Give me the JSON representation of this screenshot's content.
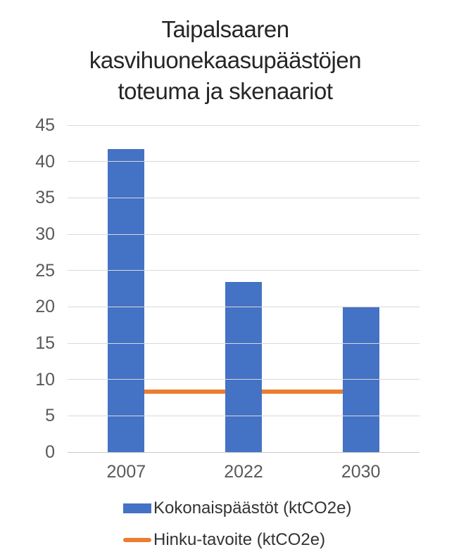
{
  "chart_data": {
    "type": "bar",
    "title": "Taipalsaaren kasvihuonekaasupäästöjen toteuma ja skenaariot",
    "title_lines": [
      "Taipalsaaren",
      "kasvihuonekaasupäästöjen",
      "toteuma ja skenaariot"
    ],
    "categories": [
      "2007",
      "2022",
      "2030"
    ],
    "series": [
      {
        "name": "Kokonaispäästöt (ktCO2e)",
        "type": "bar",
        "color": "#4472C4",
        "values": [
          41.7,
          23.4,
          19.9
        ]
      },
      {
        "name": "Hinku-tavoite (ktCO2e)",
        "type": "line",
        "color": "#ED7D31",
        "values": [
          8.3,
          8.3,
          8.3
        ]
      }
    ],
    "xlabel": "",
    "ylabel": "",
    "ylim": [
      0,
      45
    ],
    "yticks": [
      0,
      5,
      10,
      15,
      20,
      25,
      30,
      35,
      40,
      45
    ],
    "grid": true,
    "legend_position": "bottom",
    "styles": {
      "grid_color": "#D9D9D9",
      "baseline_color": "#C9C9C9",
      "tick_text_color": "#595959",
      "title_color": "#262626",
      "legend_text_color": "#333333",
      "background": "#FFFFFF"
    }
  }
}
